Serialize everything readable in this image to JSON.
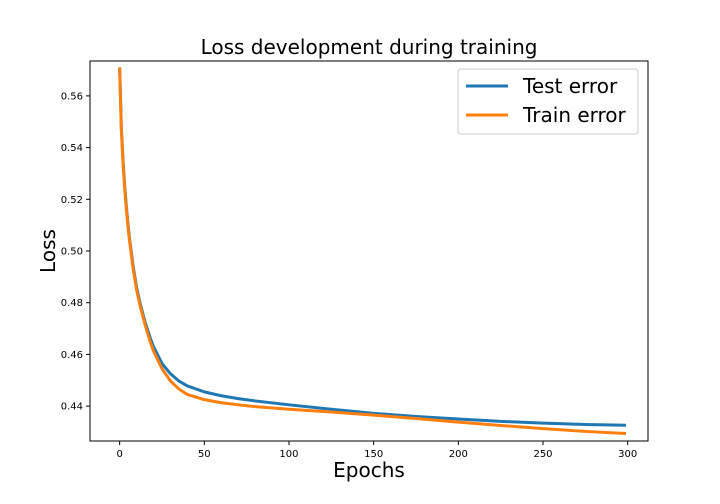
{
  "chart_data": {
    "type": "line",
    "title": "Loss development during training",
    "xlabel": "Epochs",
    "ylabel": "Loss",
    "xlim": [
      -17.5,
      312
    ],
    "ylim": [
      0.4265,
      0.5735
    ],
    "x_ticks": [
      0,
      50,
      100,
      150,
      200,
      250,
      300
    ],
    "y_ticks": [
      0.44,
      0.46,
      0.48,
      0.5,
      0.52,
      0.54,
      0.56
    ],
    "x_tick_labels": [
      "0",
      "50",
      "100",
      "150",
      "200",
      "250",
      "300"
    ],
    "y_tick_labels": [
      "0.44",
      "0.46",
      "0.48",
      "0.50",
      "0.52",
      "0.54",
      "0.56"
    ],
    "grid": false,
    "legend": {
      "position": "top-right",
      "entries": [
        "Test error",
        "Train error"
      ]
    },
    "x": [
      0,
      1,
      2,
      3,
      4,
      5,
      6,
      8,
      10,
      12,
      15,
      18,
      20,
      25,
      30,
      35,
      40,
      50,
      60,
      70,
      80,
      100,
      125,
      150,
      175,
      200,
      225,
      250,
      275,
      299
    ],
    "series": [
      {
        "name": "Test error",
        "color": "#1f77b4",
        "values": [
          0.571,
          0.548,
          0.535,
          0.525,
          0.517,
          0.51,
          0.504,
          0.494,
          0.486,
          0.48,
          0.4725,
          0.4665,
          0.463,
          0.4565,
          0.4525,
          0.4497,
          0.4478,
          0.4455,
          0.444,
          0.4429,
          0.442,
          0.4405,
          0.4388,
          0.4372,
          0.436,
          0.435,
          0.4341,
          0.4334,
          0.4329,
          0.4326
        ]
      },
      {
        "name": "Train error",
        "color": "#ff7f0e",
        "values": [
          0.571,
          0.547,
          0.534,
          0.524,
          0.516,
          0.509,
          0.503,
          0.493,
          0.485,
          0.479,
          0.4715,
          0.465,
          0.4613,
          0.4545,
          0.4497,
          0.4466,
          0.4445,
          0.4425,
          0.4413,
          0.4405,
          0.4398,
          0.4388,
          0.4377,
          0.4365,
          0.4352,
          0.4338,
          0.4325,
          0.4313,
          0.4302,
          0.4294
        ]
      }
    ]
  }
}
